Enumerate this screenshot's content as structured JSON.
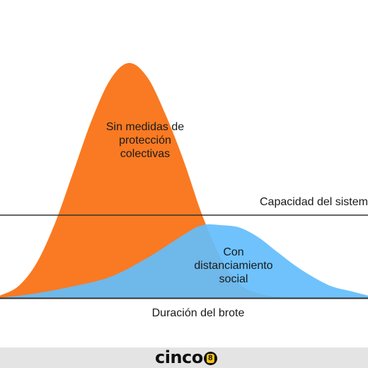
{
  "chart_data": {
    "type": "area",
    "title": "",
    "xlabel": "Duración del brote",
    "ylabel": "",
    "xlim": [
      0,
      100
    ],
    "ylim": [
      0,
      100
    ],
    "grid": false,
    "legend": "none",
    "series": [
      {
        "label": "Sin medidas de protección colectivas",
        "color": "#f97a22",
        "x": [
          0,
          5,
          10,
          15,
          20,
          25,
          30,
          35,
          40,
          45,
          50,
          55,
          60,
          65,
          70,
          75,
          80,
          85,
          90
        ],
        "values": [
          1,
          5,
          15,
          32,
          54,
          76,
          93,
          100,
          94,
          78,
          58,
          35,
          17,
          6,
          2,
          0.5,
          0.1,
          0,
          0
        ]
      },
      {
        "label": "Con distanciamiento social",
        "color": "#63bdfc",
        "x": [
          0,
          10,
          20,
          30,
          40,
          50,
          55,
          60,
          65,
          70,
          75,
          80,
          85,
          90,
          95,
          100
        ],
        "values": [
          0,
          2,
          5,
          9,
          17,
          27,
          31,
          31,
          30,
          26,
          20,
          14,
          9,
          5,
          3,
          1
        ]
      }
    ],
    "reference_line": {
      "label": "Capacidad del sistema",
      "value": 36
    }
  },
  "annotations": {
    "orange_line1": "Sin medidas de",
    "orange_line2": "protección",
    "orange_line3": "colectivas",
    "blue_line1": "Con",
    "blue_line2": "distanciamiento",
    "blue_line3": "social"
  },
  "capacity_label": "Capacidad del sistema",
  "footer": {
    "logo_text": "cinco",
    "logo_badge": "8"
  }
}
